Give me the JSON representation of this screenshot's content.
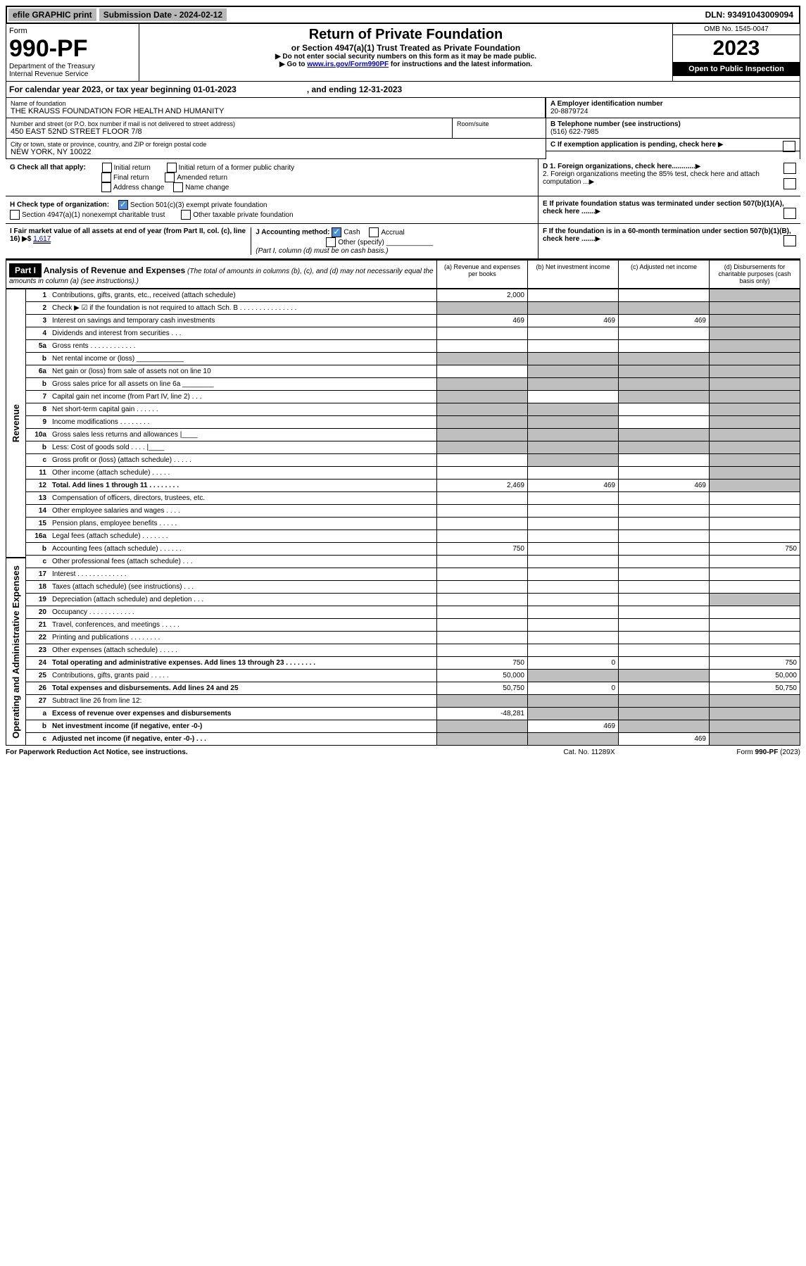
{
  "topbar": {
    "efile": "efile GRAPHIC print",
    "sub_label": "Submission Date - 2024-02-12",
    "dln": "DLN: 93491043009094"
  },
  "header": {
    "form_word": "Form",
    "form_no": "990-PF",
    "dept": "Department of the Treasury\nInternal Revenue Service",
    "title": "Return of Private Foundation",
    "sub": "or Section 4947(a)(1) Trust Treated as Private Foundation",
    "note1": "▶ Do not enter social security numbers on this form as it may be made public.",
    "note2": "▶ Go to ",
    "link": "www.irs.gov/Form990PF",
    "note3": " for instructions and the latest information.",
    "omb": "OMB No. 1545-0047",
    "year": "2023",
    "open": "Open to Public Inspection"
  },
  "cal_year": "For calendar year 2023, or tax year beginning 01-01-2023                              , and ending 12-31-2023",
  "info": {
    "name_label": "Name of foundation",
    "name": "THE KRAUSS FOUNDATION FOR HEALTH AND HUMANITY",
    "addr_label": "Number and street (or P.O. box number if mail is not delivered to street address)",
    "addr": "450 EAST 52ND STREET FLOOR 7/8",
    "room_label": "Room/suite",
    "city_label": "City or town, state or province, country, and ZIP or foreign postal code",
    "city": "NEW YORK, NY  10022",
    "a_label": "A Employer identification number",
    "a_val": "20-8879724",
    "b_label": "B Telephone number (see instructions)",
    "b_val": "(516) 622-7985",
    "c_label": "C If exemption application is pending, check here",
    "d1_label": "D 1. Foreign organizations, check here............",
    "d2_label": "2. Foreign organizations meeting the 85% test, check here and attach computation ...",
    "e_label": "E  If private foundation status was terminated under section 507(b)(1)(A), check here .......",
    "f_label": "F  If the foundation is in a 60-month termination under section 507(b)(1)(B), check here .......",
    "g_label": "G Check all that apply:",
    "g_opts": [
      "Initial return",
      "Initial return of a former public charity",
      "Final return",
      "Amended return",
      "Address change",
      "Name change"
    ],
    "h_label": "H Check type of organization:",
    "h_opts": [
      "Section 501(c)(3) exempt private foundation",
      "Section 4947(a)(1) nonexempt charitable trust",
      "Other taxable private foundation"
    ],
    "i_label": "I Fair market value of all assets at end of year (from Part II, col. (c), line 16) ▶$",
    "i_val": "1,617",
    "j_label": "J Accounting method:",
    "j_opts": [
      "Cash",
      "Accrual",
      "Other (specify)"
    ],
    "j_note": "(Part I, column (d) must be on cash basis.)"
  },
  "part1": {
    "label": "Part I",
    "title": "Analysis of Revenue and Expenses",
    "title_note": "(The total of amounts in columns (b), (c), and (d) may not necessarily equal the amounts in column (a) (see instructions).)",
    "col_a": "(a)    Revenue and expenses per books",
    "col_b": "(b)    Net investment income",
    "col_c": "(c)    Adjusted net income",
    "col_d": "(d)    Disbursements for charitable purposes (cash basis only)"
  },
  "side_labels": {
    "revenue": "Revenue",
    "expenses": "Operating and Administrative Expenses"
  },
  "rows": [
    {
      "n": "1",
      "d": "",
      "a": "2,000",
      "b": "",
      "c": "",
      "shade_d": true
    },
    {
      "n": "2",
      "d": "",
      "a": "",
      "b": "",
      "c": "",
      "shade_all": true
    },
    {
      "n": "3",
      "d": "",
      "a": "469",
      "b": "469",
      "c": "469",
      "shade_d": true
    },
    {
      "n": "4",
      "d": "",
      "a": "",
      "b": "",
      "c": "",
      "shade_d": true
    },
    {
      "n": "5a",
      "d": "",
      "a": "",
      "b": "",
      "c": "",
      "shade_d": true
    },
    {
      "n": "b",
      "d": "",
      "a": "",
      "b": "",
      "c": "",
      "shade_all": true
    },
    {
      "n": "6a",
      "d": "",
      "a": "",
      "b": "",
      "c": "",
      "shade_bcd": true
    },
    {
      "n": "b",
      "d": "",
      "a": "",
      "b": "",
      "c": "",
      "shade_all": true
    },
    {
      "n": "7",
      "d": "",
      "a": "",
      "b": "",
      "c": "",
      "shade_acd": true
    },
    {
      "n": "8",
      "d": "",
      "a": "",
      "b": "",
      "c": "",
      "shade_abd": true
    },
    {
      "n": "9",
      "d": "",
      "a": "",
      "b": "",
      "c": "",
      "shade_abd": true
    },
    {
      "n": "10a",
      "d": "",
      "a": "",
      "b": "",
      "c": "",
      "shade_all": true
    },
    {
      "n": "b",
      "d": "",
      "a": "",
      "b": "",
      "c": "",
      "shade_all": true
    },
    {
      "n": "c",
      "d": "",
      "a": "",
      "b": "",
      "c": "",
      "shade_bd": true
    },
    {
      "n": "11",
      "d": "",
      "a": "",
      "b": "",
      "c": "",
      "shade_d": true
    },
    {
      "n": "12",
      "d": "",
      "a": "2,469",
      "b": "469",
      "c": "469",
      "shade_d": true,
      "bold": true
    },
    {
      "n": "13",
      "d": "",
      "a": "",
      "b": "",
      "c": ""
    },
    {
      "n": "14",
      "d": "",
      "a": "",
      "b": "",
      "c": ""
    },
    {
      "n": "15",
      "d": "",
      "a": "",
      "b": "",
      "c": ""
    },
    {
      "n": "16a",
      "d": "",
      "a": "",
      "b": "",
      "c": ""
    },
    {
      "n": "b",
      "d": "750",
      "a": "750",
      "b": "",
      "c": ""
    },
    {
      "n": "c",
      "d": "",
      "a": "",
      "b": "",
      "c": ""
    },
    {
      "n": "17",
      "d": "",
      "a": "",
      "b": "",
      "c": ""
    },
    {
      "n": "18",
      "d": "",
      "a": "",
      "b": "",
      "c": ""
    },
    {
      "n": "19",
      "d": "",
      "a": "",
      "b": "",
      "c": "",
      "shade_d": true
    },
    {
      "n": "20",
      "d": "",
      "a": "",
      "b": "",
      "c": ""
    },
    {
      "n": "21",
      "d": "",
      "a": "",
      "b": "",
      "c": ""
    },
    {
      "n": "22",
      "d": "",
      "a": "",
      "b": "",
      "c": ""
    },
    {
      "n": "23",
      "d": "",
      "a": "",
      "b": "",
      "c": ""
    },
    {
      "n": "24",
      "d": "750",
      "a": "750",
      "b": "0",
      "c": "",
      "bold": true
    },
    {
      "n": "25",
      "d": "50,000",
      "a": "50,000",
      "b": "",
      "c": "",
      "shade_bc": true
    },
    {
      "n": "26",
      "d": "50,750",
      "a": "50,750",
      "b": "0",
      "c": "",
      "bold": true
    },
    {
      "n": "27",
      "d": "",
      "a": "",
      "b": "",
      "c": "",
      "shade_all": true
    },
    {
      "n": "a",
      "d": "",
      "a": "-48,281",
      "b": "",
      "c": "",
      "shade_bcd": true,
      "bold": true
    },
    {
      "n": "b",
      "d": "",
      "a": "",
      "b": "469",
      "c": "",
      "shade_acd": true,
      "bold": true
    },
    {
      "n": "c",
      "d": "",
      "a": "",
      "b": "",
      "c": "469",
      "shade_abd": true,
      "bold": true
    }
  ],
  "footer": {
    "left": "For Paperwork Reduction Act Notice, see instructions.",
    "mid": "Cat. No. 11289X",
    "right": "Form 990-PF (2023)"
  }
}
